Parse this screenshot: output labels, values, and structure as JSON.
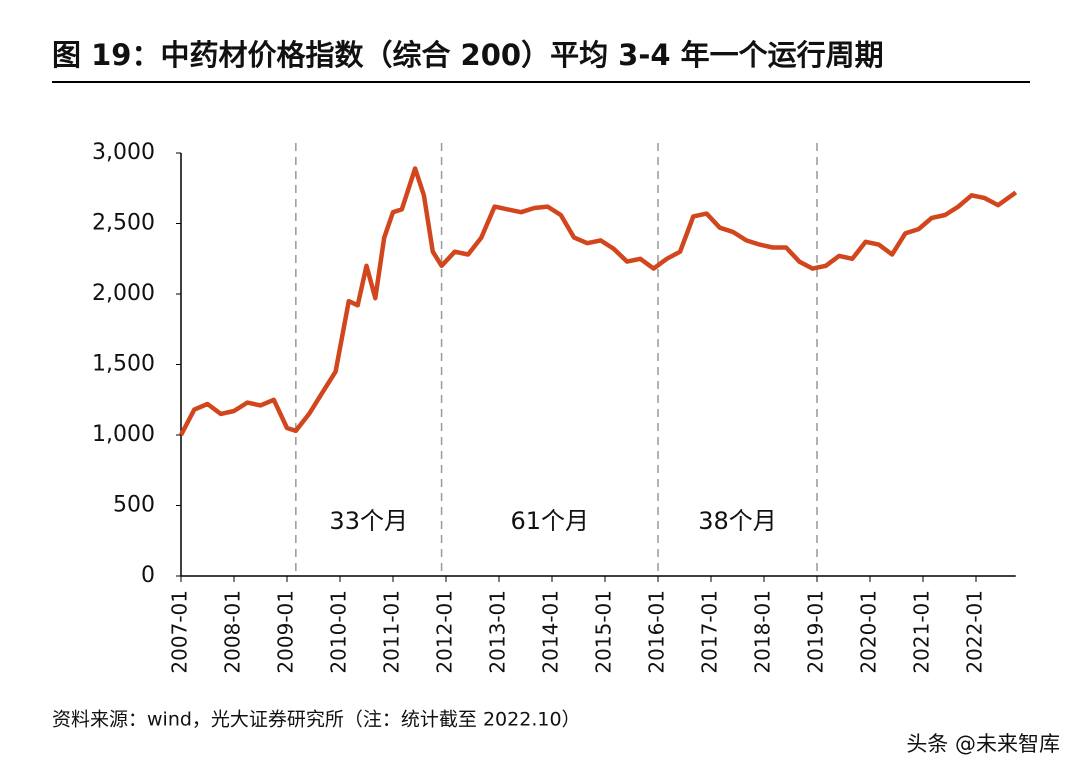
{
  "chart_data": {
    "type": "line",
    "title": "图 19：中药材价格指数（综合 200）平均 3-4 年一个运行周期",
    "source": "资料来源：wind，光大证券研究所（注：统计截至 2022.10）",
    "watermark": "头条 @未来智库",
    "x": [
      "2007-01",
      "2007-04",
      "2007-07",
      "2007-10",
      "2008-01",
      "2008-04",
      "2008-07",
      "2008-10",
      "2009-01",
      "2009-03",
      "2009-06",
      "2009-09",
      "2009-12",
      "2010-03",
      "2010-05",
      "2010-07",
      "2010-09",
      "2010-11",
      "2011-01",
      "2011-03",
      "2011-06",
      "2011-08",
      "2011-10",
      "2011-12",
      "2012-03",
      "2012-06",
      "2012-09",
      "2012-12",
      "2013-03",
      "2013-06",
      "2013-09",
      "2013-12",
      "2014-03",
      "2014-06",
      "2014-09",
      "2014-12",
      "2015-03",
      "2015-06",
      "2015-09",
      "2015-12",
      "2016-03",
      "2016-06",
      "2016-09",
      "2016-12",
      "2017-03",
      "2017-06",
      "2017-09",
      "2017-12",
      "2018-03",
      "2018-06",
      "2018-09",
      "2018-12",
      "2019-03",
      "2019-06",
      "2019-09",
      "2019-12",
      "2020-03",
      "2020-06",
      "2020-09",
      "2020-12",
      "2021-03",
      "2021-06",
      "2021-09",
      "2021-12",
      "2022-03",
      "2022-06",
      "2022-10"
    ],
    "series": [
      {
        "name": "中药材价格指数（综合 200）",
        "color": "#d2461e",
        "values": [
          1000,
          1180,
          1220,
          1150,
          1170,
          1230,
          1210,
          1250,
          1050,
          1030,
          1150,
          1300,
          1450,
          1950,
          1920,
          2200,
          1970,
          2400,
          2580,
          2600,
          2890,
          2700,
          2300,
          2200,
          2300,
          2280,
          2400,
          2620,
          2600,
          2580,
          2610,
          2620,
          2560,
          2400,
          2360,
          2380,
          2320,
          2230,
          2250,
          2180,
          2250,
          2300,
          2550,
          2570,
          2470,
          2440,
          2380,
          2350,
          2330,
          2330,
          2230,
          2180,
          2200,
          2270,
          2250,
          2370,
          2350,
          2280,
          2430,
          2460,
          2540,
          2560,
          2620,
          2700,
          2680,
          2630,
          2720
        ]
      }
    ],
    "xticks": [
      "2007-01",
      "2008-01",
      "2009-01",
      "2010-01",
      "2011-01",
      "2012-01",
      "2013-01",
      "2014-01",
      "2015-01",
      "2016-01",
      "2017-01",
      "2018-01",
      "2019-01",
      "2020-01",
      "2021-01",
      "2022-01"
    ],
    "xlim": [
      "2007-01",
      "2022-10"
    ],
    "ylim": [
      0,
      3000
    ],
    "yticks": [
      0,
      500,
      {
        "value": 1000,
        "label": "1,000"
      },
      {
        "value": 1500,
        "label": "1,500"
      },
      {
        "value": 2000,
        "label": "2,000"
      },
      {
        "value": 2500,
        "label": "2,500"
      },
      {
        "value": 3000,
        "label": "3,000"
      }
    ],
    "dividers": [
      "2009-03",
      "2011-12",
      "2016-01",
      "2019-01"
    ],
    "annotations": [
      "33个月",
      "61个月",
      "38个月"
    ]
  }
}
